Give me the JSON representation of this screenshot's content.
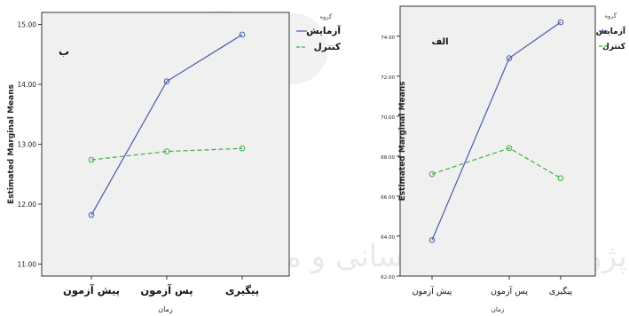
{
  "watermark": {
    "text": "پژوهشگاه علوم انسانی و مطالعات فرهنگی"
  },
  "colors": {
    "plot_bg": "#f0f0f0",
    "axis": "#333333",
    "experiment": "#4a5aa8",
    "control": "#3cb043",
    "watermark": "#d9d9d9"
  },
  "chart_data": [
    {
      "type": "line",
      "panel_label": "ب",
      "title": "",
      "xlabel": "زمان",
      "ylabel": "Estimated Marginal Means",
      "categories": [
        "پیش آزمون",
        "پس آزمون",
        "پیگیری"
      ],
      "ylim": [
        10.8,
        15.2
      ],
      "yticks": [
        11.0,
        12.0,
        13.0,
        14.0,
        15.0
      ],
      "ytick_labels": [
        "11.00",
        "12.00",
        "13.00",
        "14.00",
        "15.00"
      ],
      "legend_title": "گروه",
      "legend_position": "outside-right",
      "grid": false,
      "series": [
        {
          "name": "آزمایش",
          "values": [
            11.82,
            14.05,
            14.83
          ],
          "style": "solid",
          "color": "#4a5aa8"
        },
        {
          "name": "کنترل",
          "values": [
            12.74,
            12.88,
            12.93
          ],
          "style": "dashed",
          "color": "#3cb043"
        }
      ]
    },
    {
      "type": "line",
      "panel_label": "الف",
      "title": "",
      "xlabel": "زمان",
      "ylabel": "Estimated Marginal Means",
      "categories": [
        "پیش آزمون",
        "پس آزمون",
        "پیگیری"
      ],
      "ylim": [
        62.0,
        75.5
      ],
      "yticks": [
        62.0,
        64.0,
        66.0,
        68.0,
        70.0,
        72.0,
        74.0
      ],
      "ytick_labels": [
        "62.00",
        "64.00",
        "66.00",
        "68.00",
        "70.00",
        "72.00",
        "74.00"
      ],
      "legend_title": "گروه",
      "legend_position": "outside-right",
      "grid": false,
      "series": [
        {
          "name": "آزمایش",
          "values": [
            63.8,
            72.9,
            74.7
          ],
          "style": "solid",
          "color": "#4a5aa8"
        },
        {
          "name": "کنترل",
          "values": [
            67.1,
            68.4,
            66.9
          ],
          "style": "dashed",
          "color": "#3cb043"
        }
      ]
    }
  ]
}
